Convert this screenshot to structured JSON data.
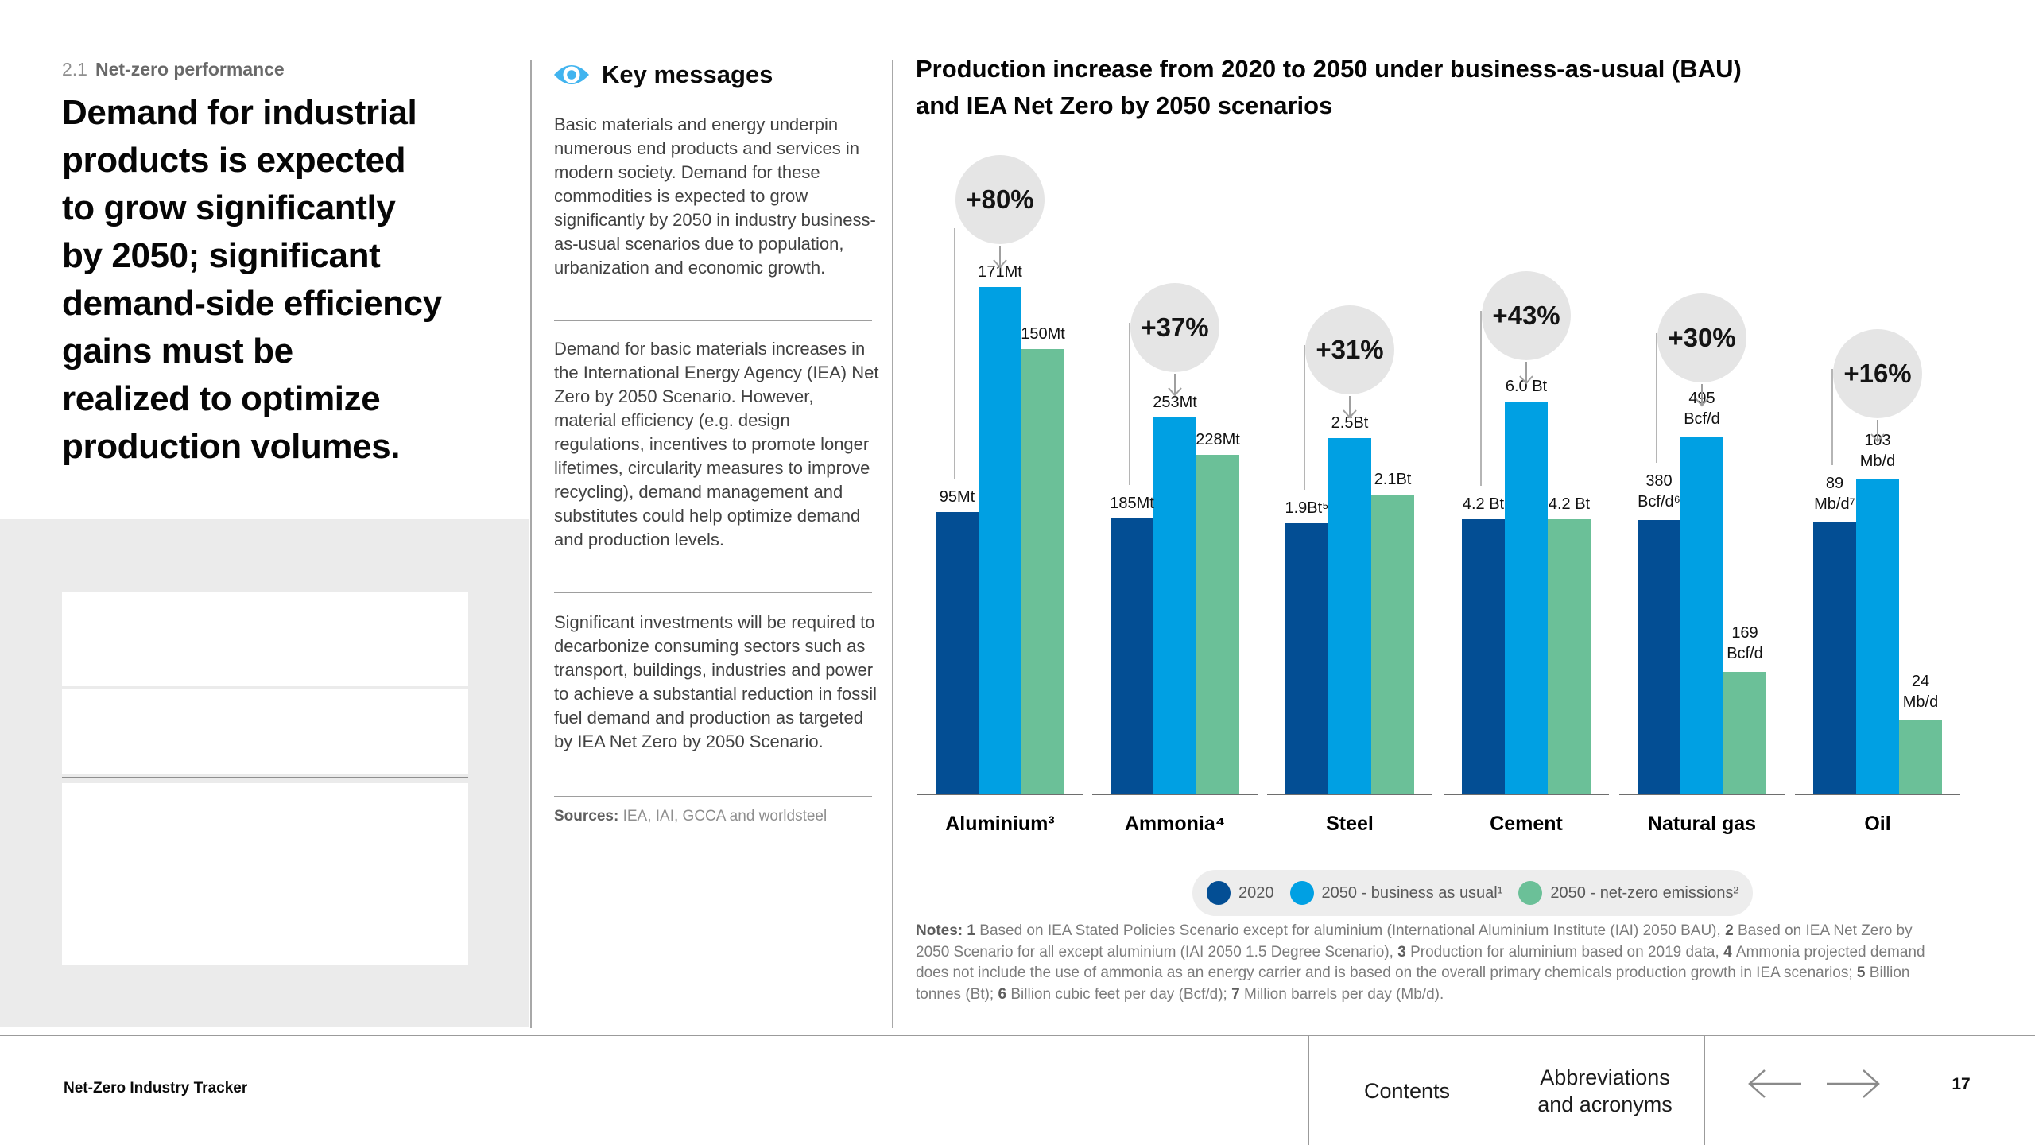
{
  "page": {
    "section_number": "2.1",
    "section_title": "Net-zero performance",
    "headline": "Demand for industrial\nproducts is expected\nto grow significantly\nby 2050; significant\ndemand-side efficiency\ngains must be\nrealized to optimize\nproduction volumes."
  },
  "key_messages": {
    "title": "Key messages",
    "paragraphs": [
      "Basic materials and energy underpin numerous end products and services in modern society. Demand for these commodities is expected to grow significantly by 2050 in industry business-as-usual scenarios due to population, urbanization and economic growth.",
      "Demand for basic materials increases in the International Energy Agency (IEA) Net Zero by 2050 Scenario. However, material efficiency (e.g. design regulations, incentives to promote longer lifetimes, circularity measures to improve recycling), demand management and substitutes could help optimize demand and production levels.",
      "Significant investments will be required to decarbonize consuming sectors such as transport, buildings, industries and power to achieve a substantial reduction in fossil fuel demand and production as targeted by IEA Net Zero by 2050 Scenario."
    ],
    "sources_label": "Sources:",
    "sources_text": " IEA, IAI, GCCA and worldsteel"
  },
  "chart_data": {
    "type": "bar",
    "title": "Production increase from 2020 to 2050 under business-as-usual (BAU) and IEA Net Zero by 2050 scenarios",
    "title_line1": "Production increase from 2020 to 2050 under business-as-usual (BAU)",
    "title_line2": "and IEA Net Zero by 2050 scenarios",
    "legend_position": "bottom",
    "grid": false,
    "series": [
      {
        "key": "2020",
        "name": "2020",
        "legend": "2020",
        "color": "#034E94"
      },
      {
        "key": "bau",
        "name": "2050 - business as usual",
        "legend": "2050 - business as usual¹",
        "color": "#00A0E3"
      },
      {
        "key": "nze",
        "name": "2050 - net-zero emissions",
        "legend": "2050 - net-zero emissions²",
        "color": "#6BC098"
      }
    ],
    "groups": [
      {
        "category": "Aluminium³",
        "unit": "Mt",
        "values": [
          95,
          171,
          150
        ],
        "labels": [
          "95Mt",
          "171Mt",
          "150Mt"
        ],
        "increase": "+80%"
      },
      {
        "category": "Ammonia⁴",
        "unit": "Mt",
        "values": [
          185,
          253,
          228
        ],
        "labels": [
          "185Mt",
          "253Mt",
          "228Mt"
        ],
        "increase": "+37%"
      },
      {
        "category": "Steel",
        "unit": "Bt",
        "values": [
          1.9,
          2.5,
          2.1
        ],
        "labels": [
          "1.9Bt⁵",
          "2.5Bt",
          "2.1Bt"
        ],
        "increase": "+31%"
      },
      {
        "category": "Cement",
        "unit": "Bt",
        "values": [
          4.2,
          6.0,
          4.2
        ],
        "labels": [
          "4.2 Bt",
          "6.0 Bt",
          "4.2 Bt"
        ],
        "increase": "+43%"
      },
      {
        "category": "Natural gas",
        "unit": "Bcf/d",
        "values": [
          380,
          495,
          169
        ],
        "labels": [
          "380\nBcf/d⁶",
          "495\nBcf/d",
          "169\nBcf/d"
        ],
        "increase": "+30%"
      },
      {
        "category": "Oil",
        "unit": "Mb/d",
        "values": [
          89,
          103,
          24
        ],
        "labels": [
          "89\nMb/d⁷",
          "103\nMb/d",
          "24\nMb/d"
        ],
        "increase": "+16%"
      }
    ]
  },
  "notes": {
    "segments": [
      {
        "t": "Notes: ",
        "b": true
      },
      {
        "t": "1 ",
        "b": true
      },
      {
        "t": "Based on IEA Stated Policies Scenario except for aluminium (International Aluminium Institute (IAI) 2050 BAU), ",
        "b": false
      },
      {
        "t": "2 ",
        "b": true
      },
      {
        "t": "Based on IEA Net Zero by 2050 Scenario for all except aluminium (IAI 2050 1.5 Degree Scenario), ",
        "b": false
      },
      {
        "t": "3 ",
        "b": true
      },
      {
        "t": "Production for aluminium based on 2019 data, ",
        "b": false
      },
      {
        "t": "4 ",
        "b": true
      },
      {
        "t": "Ammonia projected demand does not include the use of ammonia as an energy carrier and is based on the overall primary chemicals production growth in IEA scenarios; ",
        "b": false
      },
      {
        "t": "5 ",
        "b": true
      },
      {
        "t": "Billion tonnes (Bt); ",
        "b": false
      },
      {
        "t": "6 ",
        "b": true
      },
      {
        "t": "Billion cubic feet per day (Bcf/d); ",
        "b": false
      },
      {
        "t": "7 ",
        "b": true
      },
      {
        "t": "Million barrels per day (Mb/d).",
        "b": false
      }
    ]
  },
  "footer": {
    "brand": "Net-Zero Industry Tracker",
    "contents_label": "Contents",
    "abbreviations_label": "Abbreviations\nand acronyms",
    "page_number": "17"
  }
}
